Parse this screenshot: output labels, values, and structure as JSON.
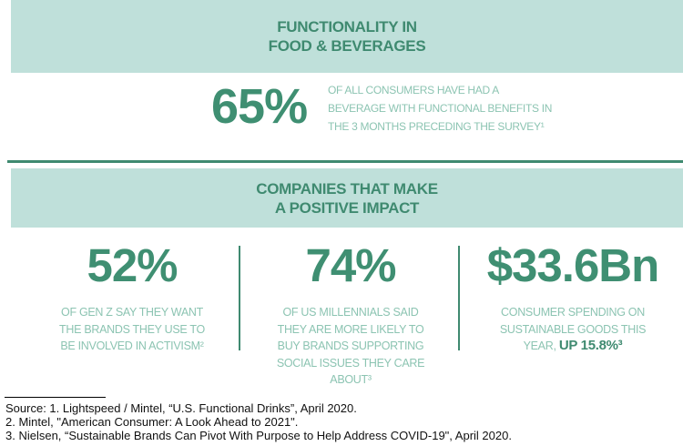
{
  "section1": {
    "title_lines": [
      "FUNCTIONALITY IN",
      "FOOD & BEVERAGES"
    ],
    "stat": "65%",
    "desc_lines": [
      "OF ALL CONSUMERS HAVE HAD A",
      "BEVERAGE WITH FUNCTIONAL BENEFITS IN",
      "THE 3 MONTHS PRECEDING THE SURVEY¹"
    ]
  },
  "section2": {
    "title_lines": [
      "COMPANIES THAT MAKE",
      "A POSITIVE IMPACT"
    ],
    "stats": [
      {
        "value": "52%",
        "desc_lines": [
          "OF GEN Z SAY THEY WANT",
          "THE BRANDS THEY USE TO",
          "BE INVOLVED IN ACTIVISM²"
        ]
      },
      {
        "value": "74%",
        "desc_lines": [
          "OF US MILLENNIALS SAID",
          "THEY ARE MORE LIKELY TO",
          "BUY BRANDS SUPPORTING",
          "SOCIAL ISSUES THEY CARE",
          "ABOUT³"
        ]
      },
      {
        "value": "$33.6Bn",
        "desc_lines": [
          "CONSUMER SPENDING ON",
          "SUSTAINABLE GOODS THIS",
          "YEAR,"
        ],
        "highlight": "UP 15.8%³"
      }
    ]
  },
  "footnotes": [
    "Source: 1. Lightspeed / Mintel, “U.S. Functional Drinks”, April 2020.",
    "2. Mintel, \"American Consumer: A Look Ahead to 2021\".",
    "3. Nielsen, “Sustainable Brands Can Pivot With Purpose to Help Address COVID-19\", April 2020."
  ],
  "colors": {
    "band": "#bfe0da",
    "accent": "#3f8a70",
    "light_text": "#8cc4b2"
  }
}
